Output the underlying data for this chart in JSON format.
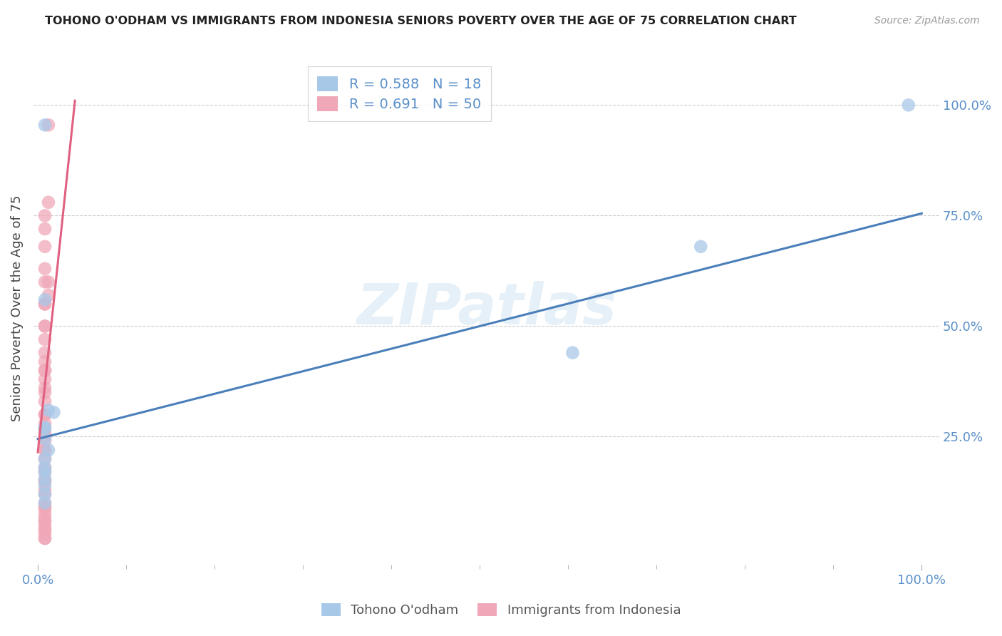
{
  "title": "TOHONO O'ODHAM VS IMMIGRANTS FROM INDONESIA SENIORS POVERTY OVER THE AGE OF 75 CORRELATION CHART",
  "source": "Source: ZipAtlas.com",
  "ylabel": "Seniors Poverty Over the Age of 75",
  "background_color": "#ffffff",
  "watermark": "ZIPatlas",
  "legend_r_blue": "R = 0.588",
  "legend_n_blue": "N = 18",
  "legend_r_pink": "R = 0.691",
  "legend_n_pink": "N = 50",
  "blue_color": "#a8c8e8",
  "pink_color": "#f0a8b8",
  "blue_line_color": "#4a7fba",
  "pink_line_color": "#e06080",
  "ytick_labels": [
    "25.0%",
    "50.0%",
    "75.0%",
    "100.0%"
  ],
  "ytick_values": [
    0.25,
    0.5,
    0.75,
    1.0
  ],
  "xtick_labels_ends": [
    "0.0%",
    "100.0%"
  ],
  "xtick_values_ends": [
    0.0,
    1.0
  ],
  "xtick_minor": [
    0.1,
    0.2,
    0.3,
    0.4,
    0.5,
    0.6,
    0.7,
    0.8,
    0.9
  ],
  "blue_points_x": [
    0.008,
    0.008,
    0.012,
    0.018,
    0.008,
    0.008,
    0.012,
    0.008,
    0.008,
    0.008,
    0.008,
    0.008,
    0.008,
    0.008,
    0.008,
    0.605,
    0.75,
    0.985
  ],
  "blue_points_y": [
    0.955,
    0.56,
    0.31,
    0.305,
    0.27,
    0.245,
    0.22,
    0.2,
    0.18,
    0.155,
    0.14,
    0.12,
    0.17,
    0.1,
    0.27,
    0.44,
    0.68,
    1.0
  ],
  "pink_points_x": [
    0.012,
    0.012,
    0.012,
    0.012,
    0.008,
    0.008,
    0.008,
    0.008,
    0.008,
    0.008,
    0.008,
    0.008,
    0.008,
    0.008,
    0.008,
    0.008,
    0.008,
    0.008,
    0.008,
    0.008,
    0.008,
    0.008,
    0.008,
    0.008,
    0.008,
    0.008,
    0.008,
    0.008,
    0.008,
    0.008,
    0.008,
    0.008,
    0.008,
    0.008,
    0.008,
    0.008,
    0.008,
    0.008,
    0.008,
    0.008,
    0.008,
    0.008,
    0.008,
    0.008,
    0.008,
    0.008,
    0.008,
    0.008,
    0.008,
    0.008
  ],
  "pink_points_y": [
    0.955,
    0.78,
    0.6,
    0.57,
    0.75,
    0.72,
    0.68,
    0.63,
    0.6,
    0.55,
    0.5,
    0.47,
    0.44,
    0.42,
    0.4,
    0.38,
    0.36,
    0.33,
    0.3,
    0.28,
    0.26,
    0.24,
    0.22,
    0.2,
    0.18,
    0.17,
    0.15,
    0.13,
    0.12,
    0.1,
    0.09,
    0.07,
    0.06,
    0.05,
    0.04,
    0.03,
    0.02,
    0.08,
    0.06,
    0.04,
    0.15,
    0.09,
    0.3,
    0.25,
    0.22,
    0.35,
    0.4,
    0.5,
    0.55,
    0.02
  ],
  "blue_line_x": [
    0.0,
    1.0
  ],
  "blue_line_y": [
    0.245,
    0.755
  ],
  "pink_line_x": [
    0.0,
    0.042
  ],
  "pink_line_y": [
    0.215,
    1.01
  ],
  "xlim": [
    -0.005,
    1.02
  ],
  "ylim": [
    -0.04,
    1.12
  ]
}
